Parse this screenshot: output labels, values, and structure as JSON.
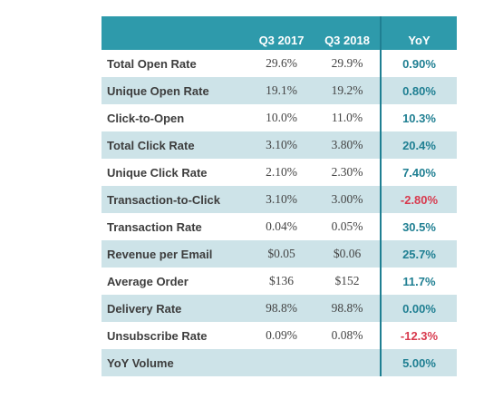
{
  "chart_data": {
    "type": "table",
    "columns": [
      "",
      "Q3 2017",
      "Q3 2018",
      "YoY"
    ],
    "rows": [
      {
        "metric": "Total Open Rate",
        "q3_2017": "29.6%",
        "q3_2018": "29.9%",
        "yoy": "0.90%"
      },
      {
        "metric": "Unique Open Rate",
        "q3_2017": "19.1%",
        "q3_2018": "19.2%",
        "yoy": "0.80%"
      },
      {
        "metric": "Click-to-Open",
        "q3_2017": "10.0%",
        "q3_2018": "11.0%",
        "yoy": "10.3%"
      },
      {
        "metric": "Total Click Rate",
        "q3_2017": "3.10%",
        "q3_2018": "3.80%",
        "yoy": "20.4%"
      },
      {
        "metric": "Unique Click Rate",
        "q3_2017": "2.10%",
        "q3_2018": "2.30%",
        "yoy": "7.40%"
      },
      {
        "metric": "Transaction-to-Click",
        "q3_2017": "3.10%",
        "q3_2018": "3.00%",
        "yoy": "-2.80%"
      },
      {
        "metric": "Transaction Rate",
        "q3_2017": "0.04%",
        "q3_2018": "0.05%",
        "yoy": "30.5%"
      },
      {
        "metric": "Revenue per Email",
        "q3_2017": "$0.05",
        "q3_2018": "$0.06",
        "yoy": "25.7%"
      },
      {
        "metric": "Average Order",
        "q3_2017": "$136",
        "q3_2018": "$152",
        "yoy": "11.7%"
      },
      {
        "metric": "Delivery Rate",
        "q3_2017": "98.8%",
        "q3_2018": "98.8%",
        "yoy": "0.00%"
      },
      {
        "metric": "Unsubscribe Rate",
        "q3_2017": "0.09%",
        "q3_2018": "0.08%",
        "yoy": "-12.3%"
      },
      {
        "metric": "YoY Volume",
        "q3_2017": "",
        "q3_2018": "",
        "yoy": "5.00%"
      }
    ]
  },
  "colors": {
    "header_bg": "#2e9aab",
    "row_shade": "#cde3e8",
    "accent": "#1f7f92",
    "negative": "#d83a4e"
  }
}
